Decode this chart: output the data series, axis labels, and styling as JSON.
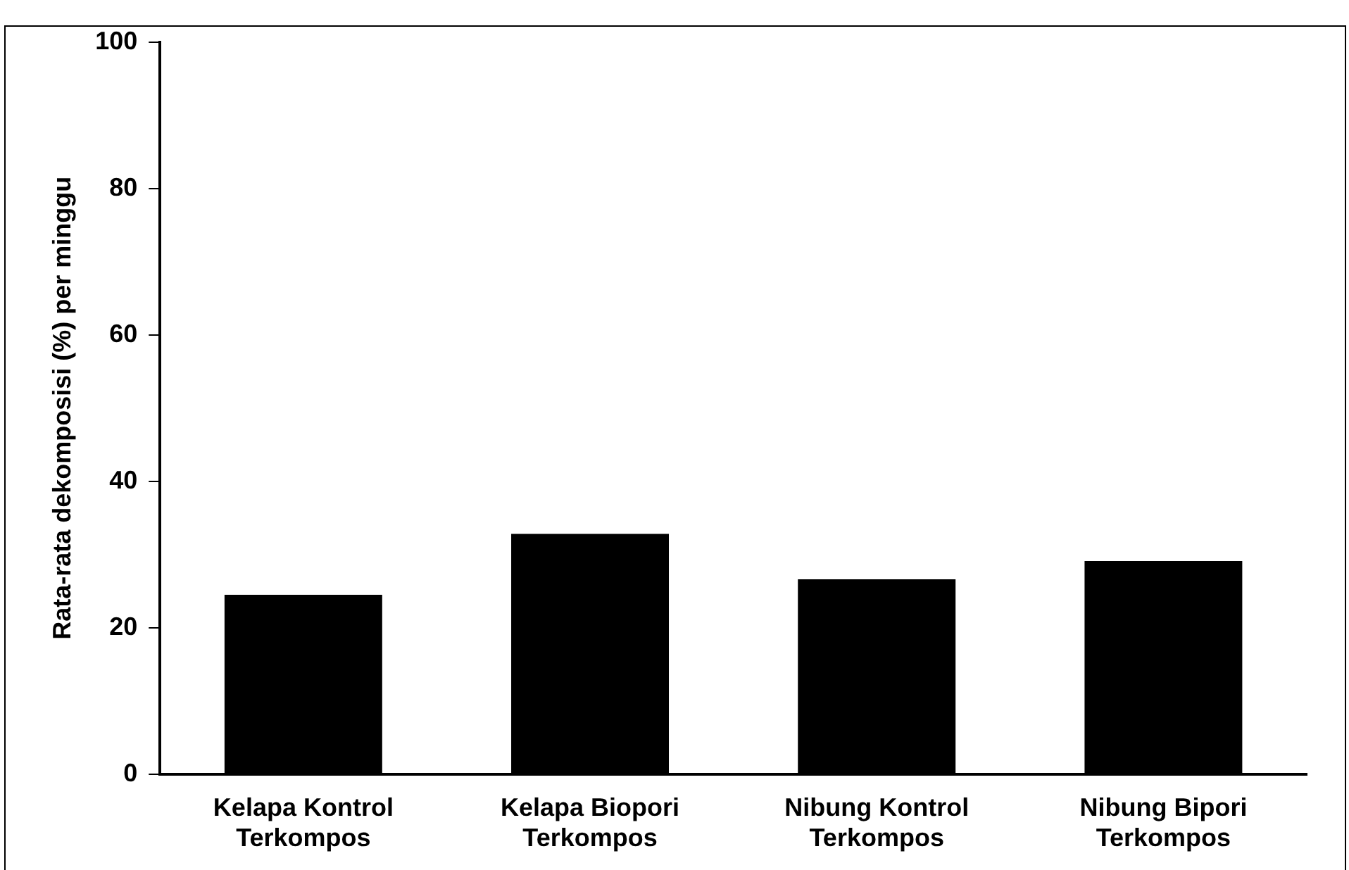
{
  "chart_data": {
    "type": "bar",
    "ylabel": "Rata-rata dekomposisi (%) per minggu",
    "categories": [
      "Kelapa Kontrol Terkompos",
      "Kelapa Biopori Terkompos",
      "Nibung Kontrol Terkompos",
      "Nibung Bipori Terkompos"
    ],
    "values": [
      24.5,
      32.8,
      26.6,
      29.1
    ],
    "color": "#000000",
    "ylim": [
      0,
      100
    ],
    "yticks": [
      0,
      20,
      40,
      60,
      80,
      100
    ],
    "grid": false,
    "legend": false
  }
}
